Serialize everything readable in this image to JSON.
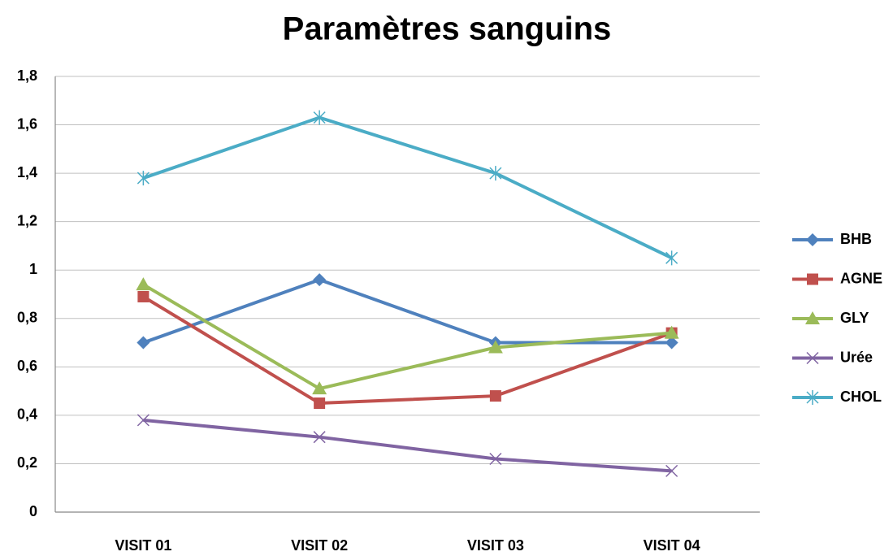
{
  "chart_data": {
    "type": "line",
    "title": "Paramètres sanguins",
    "categories": [
      "VISIT 01",
      "VISIT 02",
      "VISIT 03",
      "VISIT 04"
    ],
    "series": [
      {
        "name": "BHB",
        "color": "#4f81bd",
        "values": [
          0.7,
          0.96,
          0.7,
          0.7
        ]
      },
      {
        "name": "AGNE",
        "color": "#c0504d",
        "values": [
          0.89,
          0.45,
          0.48,
          0.74
        ]
      },
      {
        "name": "GLY",
        "color": "#9bbb59",
        "values": [
          0.94,
          0.51,
          0.68,
          0.74
        ]
      },
      {
        "name": "Urée",
        "color": "#8064a2",
        "values": [
          0.38,
          0.31,
          0.22,
          0.17
        ]
      },
      {
        "name": "CHOL",
        "color": "#4bacc6",
        "values": [
          1.38,
          1.63,
          1.4,
          1.05
        ]
      }
    ],
    "ylim": [
      0,
      1.8
    ],
    "yticks": [
      0,
      {
        "value": 0.2,
        "label": "0,2"
      },
      {
        "value": 0.4,
        "label": "0,4"
      },
      {
        "value": 0.6,
        "label": "0,6"
      },
      {
        "value": 0.8,
        "label": "0,8"
      },
      1,
      {
        "value": 1.2,
        "label": "1,2"
      },
      {
        "value": 1.4,
        "label": "1,4"
      },
      {
        "value": 1.6,
        "label": "1,6"
      },
      {
        "value": 1.8,
        "label": "1,8"
      }
    ],
    "grid": true,
    "legend": "right"
  }
}
